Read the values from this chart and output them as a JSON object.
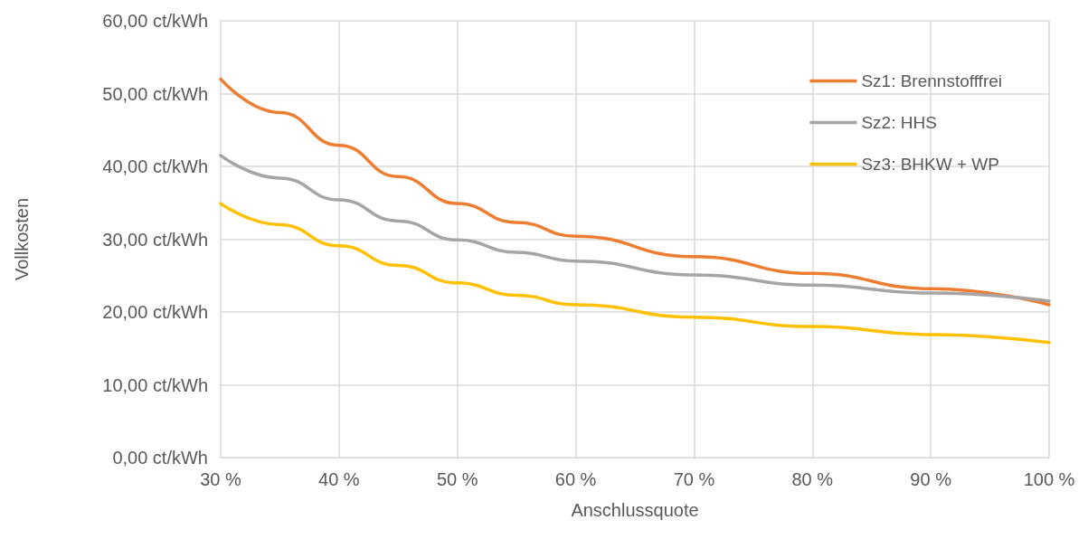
{
  "chart_data": {
    "type": "line",
    "xlabel": "Anschlussquote",
    "ylabel": "Vollkosten",
    "x": [
      30,
      35,
      40,
      45,
      50,
      55,
      60,
      70,
      80,
      90,
      100
    ],
    "series": [
      {
        "name": "Sz1: Brennstofffrei",
        "color": "#ed7d31",
        "values": [
          52.0,
          47.4,
          42.9,
          38.6,
          34.9,
          32.3,
          30.4,
          27.6,
          25.3,
          23.2,
          21.0
        ]
      },
      {
        "name": "Sz2: HHS",
        "color": "#a5a5a5",
        "values": [
          41.5,
          38.4,
          35.4,
          32.5,
          29.9,
          28.2,
          27.0,
          25.1,
          23.7,
          22.6,
          21.5
        ]
      },
      {
        "name": "Sz3: BHKW + WP",
        "color": "#ffc000",
        "values": [
          34.9,
          32.0,
          29.1,
          26.4,
          24.0,
          22.3,
          21.0,
          19.3,
          18.0,
          16.9,
          15.8
        ]
      }
    ],
    "xlim": [
      30,
      100
    ],
    "xticks": [
      {
        "value": 30,
        "label": "30 %"
      },
      {
        "value": 40,
        "label": "40 %"
      },
      {
        "value": 50,
        "label": "50 %"
      },
      {
        "value": 60,
        "label": "60 %"
      },
      {
        "value": 70,
        "label": "70 %"
      },
      {
        "value": 80,
        "label": "80 %"
      },
      {
        "value": 90,
        "label": "90 %"
      },
      {
        "value": 100,
        "label": "100 %"
      }
    ],
    "ylim": [
      0,
      60
    ],
    "yticks": [
      {
        "value": 0,
        "label": "0,00 ct/kWh"
      },
      {
        "value": 10,
        "label": "10,00 ct/kWh"
      },
      {
        "value": 20,
        "label": "20,00 ct/kWh"
      },
      {
        "value": 30,
        "label": "30,00 ct/kWh"
      },
      {
        "value": 40,
        "label": "40,00 ct/kWh"
      },
      {
        "value": 50,
        "label": "50,00 ct/kWh"
      },
      {
        "value": 60,
        "label": "60,00 ct/kWh"
      }
    ],
    "grid": true,
    "legend": "top right",
    "marker": "none",
    "line_style": "solid"
  }
}
